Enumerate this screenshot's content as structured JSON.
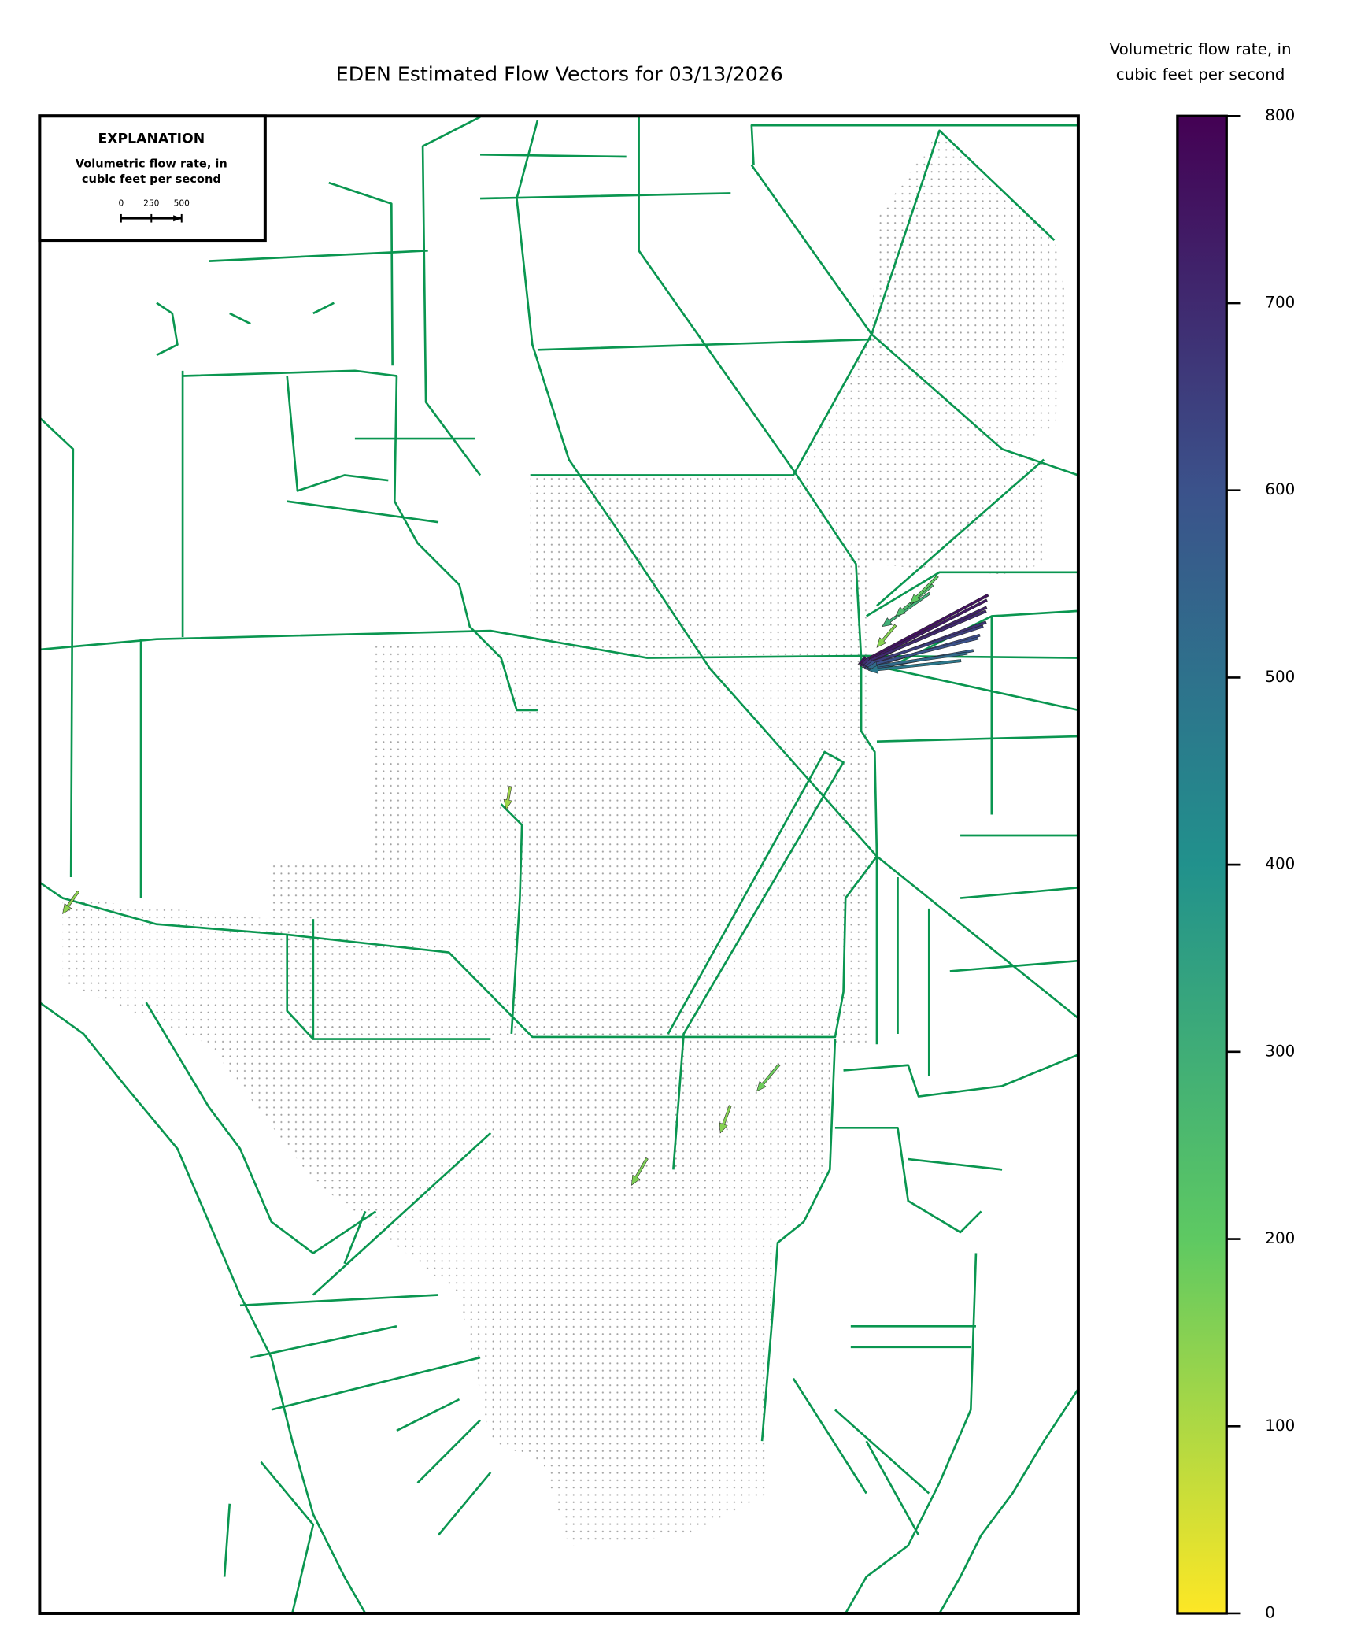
{
  "title": "EDEN Estimated Flow Vectors for 03/13/2026",
  "explanation": {
    "heading": "EXPLANATION",
    "label_line1": "Volumetric flow rate, in",
    "label_line2": "cubic feet per second",
    "scale_ticks": [
      0,
      250,
      500
    ]
  },
  "colorbar": {
    "label_line1": "Volumetric flow rate, in",
    "label_line2": "cubic feet per second",
    "lim": [
      0,
      800
    ],
    "ticks": [
      0,
      100,
      200,
      300,
      400,
      500,
      600,
      700,
      800
    ]
  },
  "vectors": {
    "magnitudes": [
      760,
      740,
      720,
      700,
      680,
      650,
      620,
      600,
      560,
      520,
      480,
      300,
      250,
      200,
      150,
      180,
      160,
      150,
      140,
      120
    ],
    "directions": [
      208,
      207,
      205,
      203,
      200,
      198,
      196,
      194,
      190,
      188,
      186,
      215,
      220,
      225,
      230,
      230,
      240,
      250,
      235,
      260
    ]
  }
}
